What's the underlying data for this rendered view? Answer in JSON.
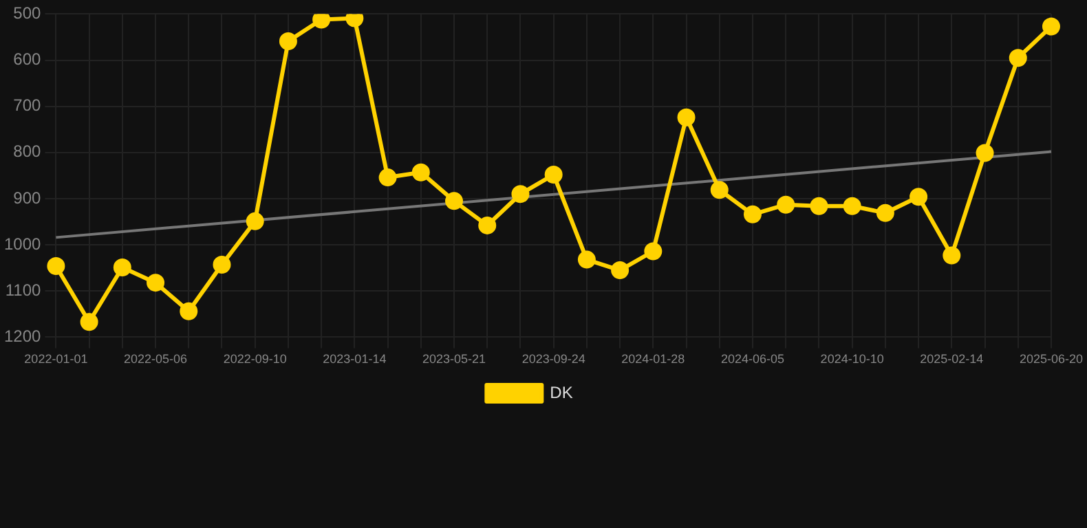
{
  "chart_data": {
    "type": "line",
    "categories": [
      "2022-01-01",
      null,
      null,
      "2022-05-06",
      null,
      null,
      "2022-09-10",
      null,
      null,
      "2023-01-14",
      null,
      null,
      "2023-05-21",
      null,
      null,
      "2023-09-24",
      null,
      null,
      "2024-01-28",
      null,
      null,
      "2024-06-05",
      null,
      null,
      "2024-10-10",
      null,
      null,
      "2025-02-14",
      null,
      null,
      "2025-06-20"
    ],
    "series": [
      {
        "name": "DK",
        "color": "#ffd200",
        "values": [
          1046,
          1167,
          1049,
          1082,
          1144,
          1043,
          949,
          559,
          512,
          509,
          854,
          843,
          905,
          958,
          890,
          848,
          1032,
          1055,
          1014,
          724,
          881,
          934,
          913,
          916,
          916,
          931,
          896,
          1023,
          801,
          595,
          527
        ]
      },
      {
        "type": "line",
        "color": "#777777",
        "marker": "none",
        "values": [
          984,
          null,
          null,
          null,
          null,
          null,
          null,
          null,
          null,
          null,
          null,
          null,
          null,
          null,
          null,
          null,
          null,
          null,
          null,
          null,
          null,
          null,
          null,
          null,
          null,
          null,
          null,
          null,
          null,
          null,
          798
        ]
      }
    ],
    "ylim": [
      1200,
      500
    ],
    "yticks": [
      500,
      600,
      700,
      800,
      900,
      1000,
      1100,
      1200
    ],
    "grid": true,
    "legend": "bottom",
    "marker": "circle"
  }
}
